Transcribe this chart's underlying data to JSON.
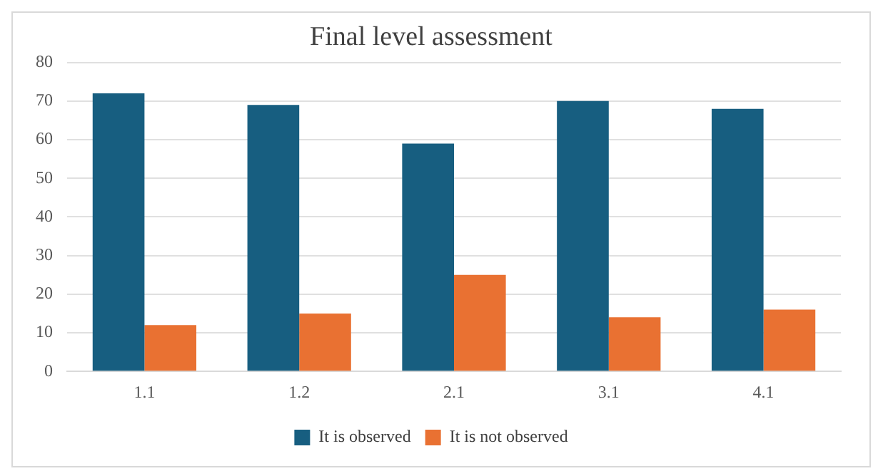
{
  "chart_data": {
    "type": "bar",
    "title": "Final level assessment",
    "categories": [
      "1.1",
      "1.2",
      "2.1",
      "3.1",
      "4.1"
    ],
    "series": [
      {
        "name": "It is observed",
        "color": "#175e80",
        "values": [
          72,
          69,
          59,
          70,
          68
        ]
      },
      {
        "name": "It is not observed",
        "color": "#e97132",
        "values": [
          12,
          15,
          25,
          14,
          16
        ]
      }
    ],
    "ylim": [
      0,
      80
    ],
    "yticks": [
      0,
      10,
      20,
      30,
      40,
      50,
      60,
      70,
      80
    ],
    "grid": "y",
    "legend": "bottom"
  }
}
